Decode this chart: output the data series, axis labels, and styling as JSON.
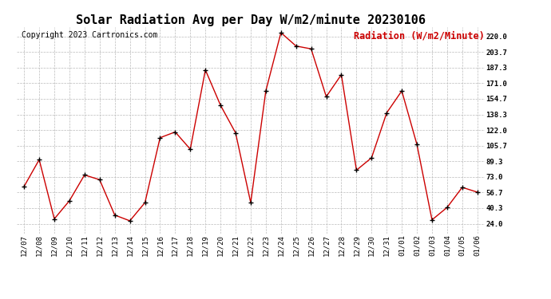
{
  "title": "Solar Radiation Avg per Day W/m2/minute 20230106",
  "copyright": "Copyright 2023 Cartronics.com",
  "legend_label": "Radiation (W/m2/Minute)",
  "dates": [
    "12/07",
    "12/08",
    "12/09",
    "12/10",
    "12/11",
    "12/12",
    "12/13",
    "12/14",
    "12/15",
    "12/16",
    "12/17",
    "12/18",
    "12/19",
    "12/20",
    "12/21",
    "12/22",
    "12/23",
    "12/24",
    "12/25",
    "12/26",
    "12/27",
    "12/28",
    "12/29",
    "12/30",
    "12/31",
    "01/01",
    "01/02",
    "01/03",
    "01/04",
    "01/05",
    "01/06"
  ],
  "values": [
    63,
    91,
    29,
    48,
    75,
    70,
    33,
    27,
    46,
    114,
    120,
    102,
    185,
    148,
    119,
    46,
    163,
    224,
    210,
    207,
    157,
    180,
    80,
    93,
    140,
    163,
    107,
    28,
    41,
    62,
    57
  ],
  "line_color": "#cc0000",
  "marker_color": "#000000",
  "bg_color": "#ffffff",
  "grid_color": "#bbbbbb",
  "title_color": "#000000",
  "copyright_color": "#000000",
  "legend_color": "#cc0000",
  "yticks": [
    24.0,
    40.3,
    56.7,
    73.0,
    89.3,
    105.7,
    122.0,
    138.3,
    154.7,
    171.0,
    187.3,
    203.7,
    220.0
  ],
  "ylim": [
    14,
    230
  ],
  "title_fontsize": 11,
  "axis_fontsize": 6.5,
  "copyright_fontsize": 7,
  "legend_fontsize": 8.5
}
